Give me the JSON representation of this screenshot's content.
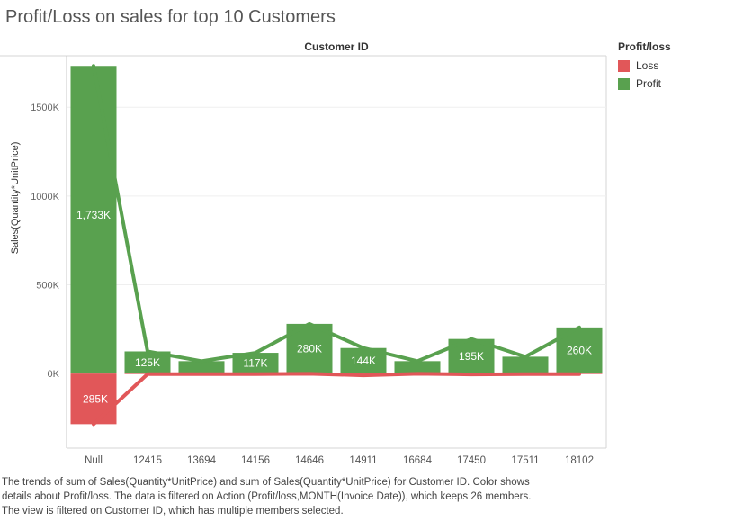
{
  "title": "Profit/Loss on sales for top 10 Customers",
  "column_header": "Customer ID",
  "legend": {
    "title": "Profit/loss",
    "items": [
      {
        "label": "Loss",
        "color": "#e15759"
      },
      {
        "label": "Profit",
        "color": "#59a14f"
      }
    ]
  },
  "caption": [
    "The trends of sum of Sales(Quantity*UnitPrice) and sum of Sales(Quantity*UnitPrice) for Customer ID.  Color shows",
    "details about Profit/loss. The data is filtered on Action (Profit/loss,MONTH(Invoice Date)), which keeps 26 members.",
    "The view is filtered on Customer ID, which has multiple members selected."
  ],
  "chart_data": {
    "type": "bar",
    "title": "Profit/Loss on sales for top 10 Customers",
    "xlabel": "Customer ID",
    "ylabel": "Sales(Quantity*UnitPrice)",
    "ylim": [
      -420,
      1790
    ],
    "yticks": [
      0,
      500,
      1000,
      1500
    ],
    "ytick_labels": [
      "0K",
      "500K",
      "1000K",
      "1500K"
    ],
    "categories": [
      "Null",
      "12415",
      "13694",
      "14156",
      "14646",
      "14911",
      "16684",
      "17450",
      "17511",
      "18102"
    ],
    "series": [
      {
        "name": "Profit",
        "color": "#59a14f",
        "values": [
          1733,
          125,
          70,
          117,
          280,
          144,
          70,
          195,
          95,
          260
        ],
        "labels": [
          "1,733K",
          "125K",
          "",
          "117K",
          "280K",
          "144K",
          "",
          "195K",
          "",
          "260K"
        ]
      },
      {
        "name": "Loss",
        "color": "#e15759",
        "values": [
          -285,
          -3,
          -3,
          -3,
          -1,
          -10,
          -1,
          -5,
          -3,
          -3
        ],
        "labels": [
          "-285K",
          "",
          "",
          "",
          "",
          "",
          "",
          "",
          "",
          ""
        ]
      }
    ],
    "grid": true,
    "legend_position": "right"
  }
}
